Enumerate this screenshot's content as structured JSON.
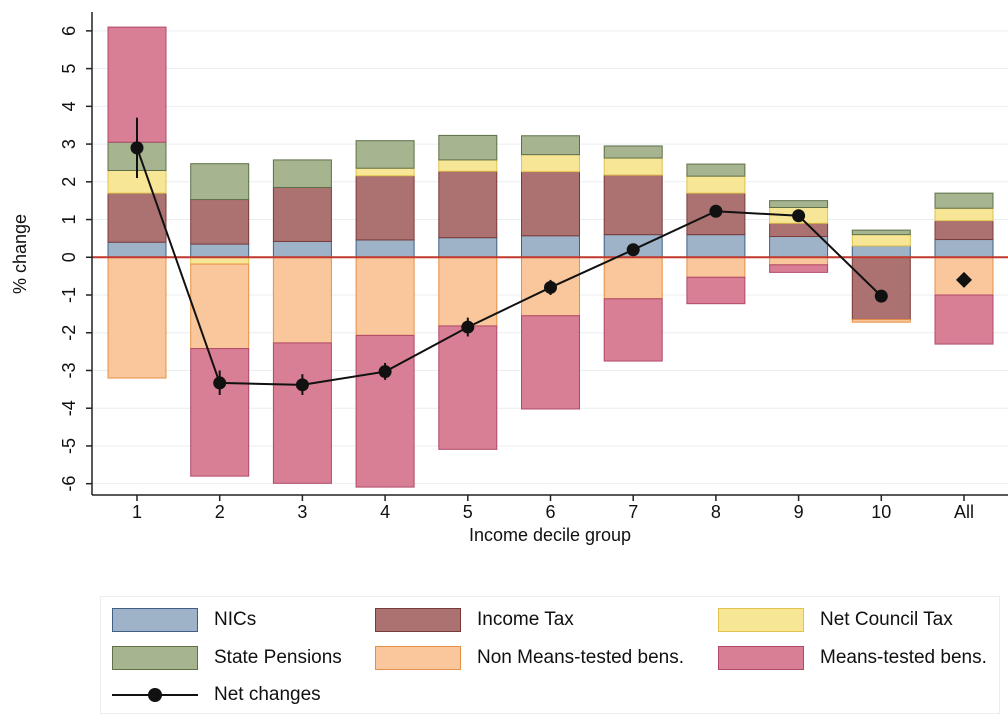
{
  "chart_data": {
    "type": "bar",
    "stacked": true,
    "ylabel": "% change",
    "xlabel": "Income decile group",
    "categories": [
      "1",
      "2",
      "3",
      "4",
      "5",
      "6",
      "7",
      "8",
      "9",
      "10",
      "All"
    ],
    "yticks": [
      6,
      5,
      4,
      3,
      2,
      1,
      0,
      -1,
      -2,
      -3,
      -4,
      -5,
      -6
    ],
    "ylim": [
      -6.3,
      6.5
    ],
    "zero_line": true,
    "grid": "horizontal",
    "series": [
      {
        "name": "NICs",
        "color": "#9fb3c8",
        "values": [
          0.4,
          0.35,
          0.42,
          0.46,
          0.52,
          0.57,
          0.6,
          0.6,
          0.55,
          0.3,
          0.47
        ]
      },
      {
        "name": "Income Tax",
        "color": "#ac7272",
        "values": [
          1.3,
          1.18,
          1.43,
          1.7,
          1.76,
          1.7,
          1.58,
          1.1,
          0.35,
          -1.65,
          0.5
        ]
      },
      {
        "name": "Net Council Tax",
        "color": "#f8e697",
        "values": [
          0.6,
          -0.18,
          0,
          0.2,
          0.3,
          0.45,
          0.45,
          0.45,
          0.42,
          0.3,
          0.33
        ]
      },
      {
        "name": "State Pensions",
        "color": "#a6b48f",
        "values": [
          0.75,
          0.95,
          0.73,
          0.73,
          0.65,
          0.5,
          0.32,
          0.32,
          0.18,
          0.12,
          0.4
        ]
      },
      {
        "name": "Non Means-tested bens.",
        "color": "#f9c79b",
        "values": [
          -3.2,
          -2.24,
          -2.27,
          -2.07,
          -1.82,
          -1.55,
          -1.1,
          -0.53,
          -0.2,
          -0.07,
          -1.0
        ]
      },
      {
        "name": "Means-tested bens.",
        "color": "#d87f96",
        "values": [
          3.05,
          -3.38,
          -3.72,
          -4.02,
          -3.27,
          -2.47,
          -1.65,
          -0.7,
          -0.2,
          0,
          -1.3
        ]
      }
    ],
    "net_changes": {
      "name": "Net changes",
      "values": [
        2.9,
        -3.33,
        -3.38,
        -3.03,
        -1.85,
        -0.8,
        0.2,
        1.22,
        1.1,
        -1.03,
        -0.6
      ],
      "ci_low": [
        2.1,
        -3.65,
        -3.65,
        -3.25,
        -2.1,
        -1.0,
        0.05,
        1.1,
        1.0,
        -1.1,
        null
      ],
      "ci_high": [
        3.7,
        -3.0,
        -3.1,
        -2.8,
        -1.6,
        -0.6,
        0.35,
        1.35,
        1.2,
        -0.96,
        null
      ],
      "connected_count": 10,
      "last_marker": "diamond"
    }
  },
  "legend": {
    "items": [
      {
        "label": "NICs",
        "color": "#9fb3c8",
        "border": "#3f5f85"
      },
      {
        "label": "Income Tax",
        "color": "#ac7272",
        "border": "#7b3a3a"
      },
      {
        "label": "Net Council Tax",
        "color": "#f8e697",
        "border": "#e0c24d"
      },
      {
        "label": "State Pensions",
        "color": "#a6b48f",
        "border": "#5d7048"
      },
      {
        "label": "Non Means-tested bens.",
        "color": "#f9c79b",
        "border": "#e79045"
      },
      {
        "label": "Means-tested bens.",
        "color": "#d87f96",
        "border": "#b04867"
      }
    ],
    "net_label": "Net changes"
  }
}
